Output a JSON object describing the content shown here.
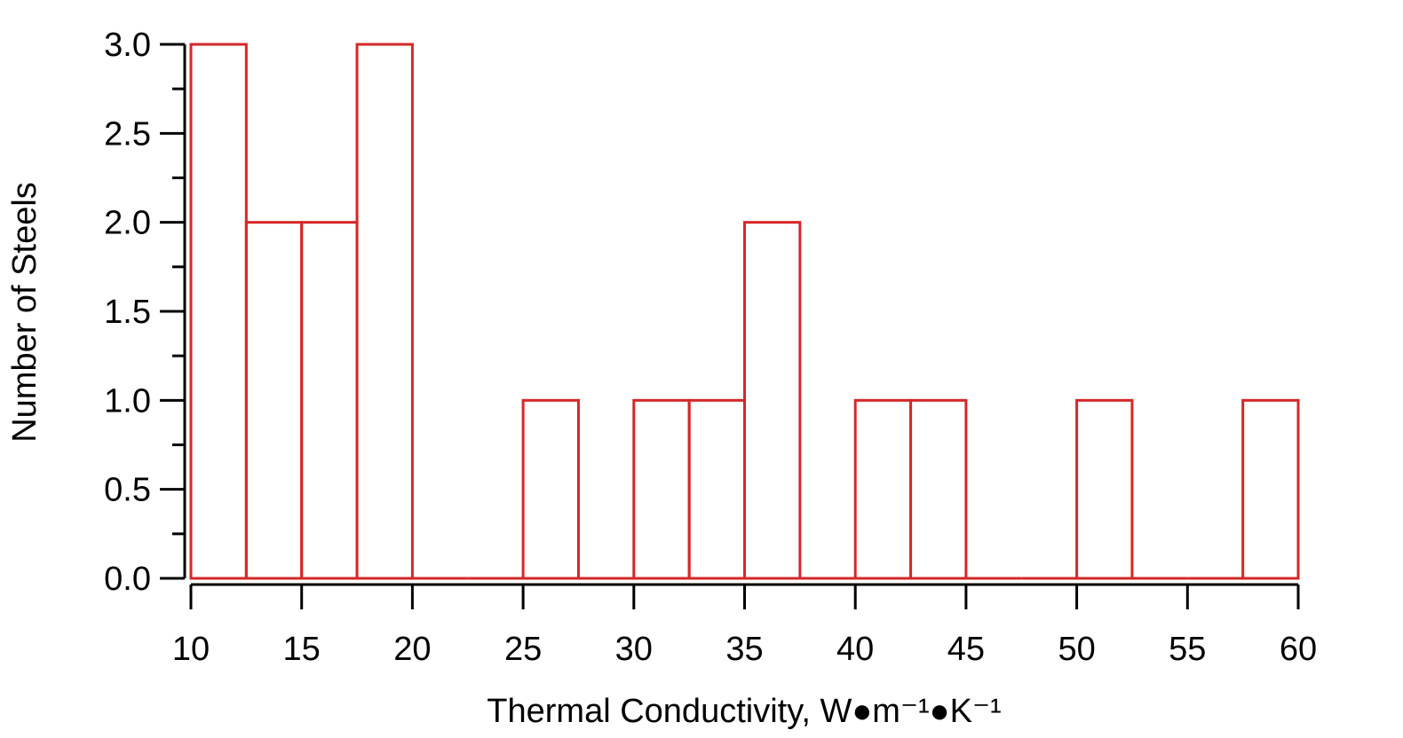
{
  "chart_data": {
    "type": "bar",
    "histogram": true,
    "bin_width": 2.5,
    "bins": [
      {
        "start": 10,
        "end": 12.5,
        "count": 3
      },
      {
        "start": 12.5,
        "end": 15,
        "count": 2
      },
      {
        "start": 15,
        "end": 17.5,
        "count": 2
      },
      {
        "start": 17.5,
        "end": 20,
        "count": 3
      },
      {
        "start": 20,
        "end": 22.5,
        "count": 0
      },
      {
        "start": 22.5,
        "end": 25,
        "count": 0
      },
      {
        "start": 25,
        "end": 27.5,
        "count": 1
      },
      {
        "start": 27.5,
        "end": 30,
        "count": 0
      },
      {
        "start": 30,
        "end": 32.5,
        "count": 1
      },
      {
        "start": 32.5,
        "end": 35,
        "count": 1
      },
      {
        "start": 35,
        "end": 37.5,
        "count": 2
      },
      {
        "start": 37.5,
        "end": 40,
        "count": 0
      },
      {
        "start": 40,
        "end": 42.5,
        "count": 1
      },
      {
        "start": 42.5,
        "end": 45,
        "count": 1
      },
      {
        "start": 45,
        "end": 47.5,
        "count": 0
      },
      {
        "start": 47.5,
        "end": 50,
        "count": 0
      },
      {
        "start": 50,
        "end": 52.5,
        "count": 1
      },
      {
        "start": 52.5,
        "end": 55,
        "count": 0
      },
      {
        "start": 55,
        "end": 57.5,
        "count": 0
      },
      {
        "start": 57.5,
        "end": 60,
        "count": 1
      }
    ],
    "title": "",
    "xlabel": "Thermal Conductivity, W●m⁻¹●K⁻¹",
    "ylabel": "Number of Steels",
    "xlim": [
      10,
      60
    ],
    "ylim": [
      0,
      3
    ],
    "xticks": [
      "10",
      "15",
      "20",
      "25",
      "30",
      "35",
      "40",
      "45",
      "50",
      "55",
      "60"
    ],
    "yticks": [
      "0.0",
      "0.5",
      "1.0",
      "1.5",
      "2.0",
      "2.5",
      "3.0"
    ],
    "grid": false,
    "legend": "none",
    "bar_color": "#d62728"
  }
}
